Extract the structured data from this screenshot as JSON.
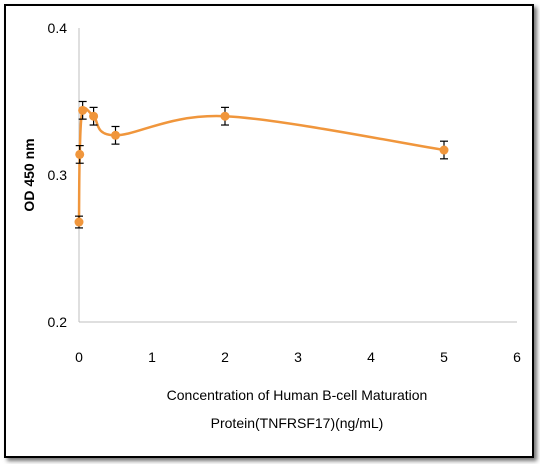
{
  "chart_data": {
    "type": "scatter",
    "xlabel_lines": [
      "Concentration of Human B-cell Maturation",
      "Protein(TNFRSF17)(ng/mL)"
    ],
    "ylabel": "OD 450 nm",
    "xlim": [
      0,
      6
    ],
    "ylim": [
      0.2,
      0.4
    ],
    "x_ticks": [
      0,
      1,
      2,
      3,
      4,
      5,
      6
    ],
    "y_ticks": [
      0.2,
      0.3,
      0.4
    ],
    "y_tick_labels": [
      "0.2",
      "0.3",
      "0.4"
    ],
    "grid": false,
    "smooth_line": true,
    "series": [
      {
        "x": [
          0,
          0.01,
          0.05,
          0.2,
          0.5,
          2,
          5
        ],
        "y": [
          0.268,
          0.314,
          0.344,
          0.34,
          0.327,
          0.34,
          0.317
        ],
        "error": [
          0.004,
          0.006,
          0.006,
          0.006,
          0.006,
          0.006,
          0.006
        ],
        "color": "#F0963C"
      }
    ]
  }
}
